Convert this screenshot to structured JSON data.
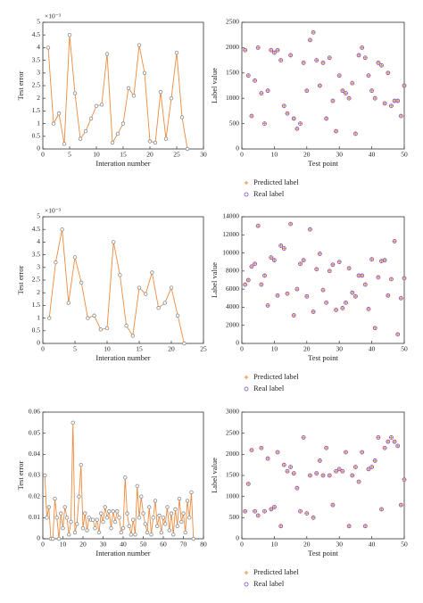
{
  "chart_data": [
    {
      "type": "line",
      "y_multiplier": "×10⁻³",
      "xlabel": "Interation number",
      "ylabel": "Test error",
      "color": "#ee8a3c",
      "marker_color": "#8a8a8a",
      "x": [
        1,
        2,
        3,
        4,
        5,
        6,
        7,
        8,
        9,
        10,
        11,
        12,
        13,
        14,
        15,
        16,
        17,
        18,
        19,
        20,
        21,
        22,
        23,
        24,
        25,
        26,
        27
      ],
      "values": [
        4.0,
        1.0,
        1.4,
        0.2,
        4.5,
        2.2,
        0.4,
        0.7,
        1.2,
        1.7,
        1.75,
        3.75,
        0.25,
        0.6,
        1.0,
        2.4,
        2.1,
        4.1,
        3.0,
        0.3,
        0.25,
        2.25,
        0.4,
        2.0,
        3.8,
        1.25,
        0.0
      ],
      "xlim": [
        0,
        30
      ],
      "xticks": [
        0,
        5,
        10,
        15,
        20,
        25,
        30
      ],
      "ylim": [
        0,
        5
      ],
      "yticks": [
        0,
        0.5,
        1,
        1.5,
        2,
        2.5,
        3,
        3.5,
        4,
        4.5,
        5
      ]
    },
    {
      "type": "scatter",
      "xlabel": "Test point",
      "ylabel": "Label value",
      "x": [
        1,
        2,
        3,
        4,
        5,
        6,
        7,
        8,
        9,
        10,
        11,
        12,
        13,
        14,
        15,
        16,
        17,
        18,
        19,
        20,
        21,
        22,
        23,
        24,
        25,
        26,
        27,
        28,
        29,
        30,
        31,
        32,
        33,
        34,
        35,
        36,
        37,
        38,
        39,
        40,
        41,
        42,
        43,
        44,
        45,
        46,
        47,
        48,
        49,
        50
      ],
      "series": [
        {
          "name": "Predicted label",
          "color": "#ee8a3c",
          "values": [
            1950,
            1450,
            650,
            1350,
            2000,
            1100,
            500,
            1150,
            1950,
            1900,
            1950,
            1750,
            850,
            700,
            1850,
            600,
            400,
            500,
            1700,
            1150,
            2150,
            2300,
            1750,
            1250,
            1700,
            600,
            1800,
            950,
            350,
            1450,
            1150,
            1100,
            1000,
            1300,
            300,
            1850,
            2000,
            1800,
            1450,
            1150,
            1000,
            1700,
            1650,
            900,
            1500,
            850,
            950,
            950,
            650,
            1250
          ]
        },
        {
          "name": "Real label",
          "color": "#7a4fc2",
          "values": [
            1950,
            1450,
            650,
            1350,
            2000,
            1100,
            500,
            1150,
            1950,
            1900,
            1950,
            1750,
            850,
            700,
            1850,
            600,
            400,
            500,
            1700,
            1150,
            2150,
            2300,
            1750,
            1250,
            1700,
            600,
            1800,
            950,
            350,
            1450,
            1150,
            1100,
            1000,
            1300,
            300,
            1850,
            2000,
            1800,
            1450,
            1150,
            1000,
            1700,
            1650,
            900,
            1500,
            850,
            950,
            950,
            650,
            1250
          ]
        }
      ],
      "xlim": [
        0,
        50
      ],
      "xticks": [
        0,
        10,
        20,
        30,
        40,
        50
      ],
      "ylim": [
        0,
        2500
      ],
      "yticks": [
        0,
        500,
        1000,
        1500,
        2000,
        2500
      ]
    },
    {
      "type": "line",
      "y_multiplier": "×10⁻³",
      "xlabel": "Interation number",
      "ylabel": "Test error",
      "color": "#ee8a3c",
      "marker_color": "#8a8a8a",
      "x": [
        1,
        2,
        3,
        4,
        5,
        6,
        7,
        8,
        9,
        10,
        11,
        12,
        13,
        14,
        15,
        16,
        17,
        18,
        19,
        20,
        21,
        22
      ],
      "values": [
        1.0,
        3.2,
        4.5,
        1.6,
        3.4,
        2.4,
        1.0,
        1.1,
        0.55,
        0.6,
        4.0,
        2.7,
        0.7,
        0.3,
        2.2,
        1.95,
        2.8,
        1.4,
        1.6,
        2.2,
        1.1,
        0.0
      ],
      "xlim": [
        0,
        25
      ],
      "xticks": [
        0,
        5,
        10,
        15,
        20,
        25
      ],
      "ylim": [
        0,
        5
      ],
      "yticks": [
        0,
        0.5,
        1,
        1.5,
        2,
        2.5,
        3,
        3.5,
        4,
        4.5,
        5
      ]
    },
    {
      "type": "scatter",
      "xlabel": "Test point",
      "ylabel": "Label value",
      "x": [
        1,
        2,
        3,
        4,
        5,
        6,
        7,
        8,
        9,
        10,
        11,
        12,
        13,
        14,
        15,
        16,
        17,
        18,
        19,
        20,
        21,
        22,
        23,
        24,
        25,
        26,
        27,
        28,
        29,
        30,
        31,
        32,
        33,
        34,
        35,
        36,
        37,
        38,
        39,
        40,
        41,
        42,
        43,
        44,
        45,
        46,
        47,
        48,
        49,
        50
      ],
      "series": [
        {
          "name": "Predicted label",
          "color": "#ee8a3c",
          "values": [
            6500,
            7000,
            8500,
            8800,
            13000,
            6500,
            7500,
            4200,
            9500,
            9200,
            5300,
            10800,
            10500,
            5500,
            13200,
            3100,
            6000,
            8800,
            9200,
            5200,
            12600,
            3500,
            8200,
            9900,
            5900,
            4500,
            8000,
            8700,
            3700,
            9000,
            3900,
            4500,
            8300,
            5600,
            5200,
            7500,
            7500,
            6500,
            3800,
            9300,
            1700,
            7300,
            9100,
            9200,
            5300,
            7100,
            11300,
            1000,
            5000,
            7200
          ]
        },
        {
          "name": "Real label",
          "color": "#7a4fc2",
          "values": [
            6500,
            7000,
            8500,
            8800,
            13000,
            6500,
            7500,
            4200,
            9500,
            9200,
            5300,
            10800,
            10500,
            5500,
            13200,
            3100,
            6000,
            8800,
            9200,
            5200,
            12600,
            3500,
            8200,
            9900,
            5900,
            4500,
            8000,
            8700,
            3700,
            9000,
            3900,
            4500,
            8300,
            5600,
            5200,
            7500,
            7500,
            6500,
            3800,
            9300,
            1700,
            7300,
            9100,
            9200,
            5300,
            7100,
            11300,
            1000,
            5000,
            7200
          ]
        }
      ],
      "xlim": [
        0,
        50
      ],
      "xticks": [
        0,
        10,
        20,
        30,
        40,
        50
      ],
      "ylim": [
        0,
        14000
      ],
      "yticks": [
        0,
        2000,
        4000,
        6000,
        8000,
        10000,
        12000,
        14000
      ]
    },
    {
      "type": "line",
      "xlabel": "Interation number",
      "ylabel": "Test error",
      "color": "#ee8a3c",
      "marker_color": "#8a8a8a",
      "x": [
        1,
        2,
        3,
        4,
        5,
        6,
        7,
        8,
        9,
        10,
        11,
        12,
        13,
        14,
        15,
        16,
        17,
        18,
        19,
        20,
        21,
        22,
        23,
        24,
        25,
        26,
        27,
        28,
        29,
        30,
        31,
        32,
        33,
        34,
        35,
        36,
        37,
        38,
        39,
        40,
        41,
        42,
        43,
        44,
        45,
        46,
        47,
        48,
        49,
        50,
        51,
        52,
        53,
        54,
        55,
        56,
        57,
        58,
        59,
        60,
        61,
        62,
        63,
        64,
        65,
        66,
        67,
        68,
        69,
        70,
        71,
        72,
        73,
        74,
        75
      ],
      "values": [
        0.03,
        0.01,
        0.015,
        0.0,
        0.0,
        0.019,
        0.01,
        0.0,
        0.012,
        0.005,
        0.015,
        0.01,
        0.002,
        0.008,
        0.055,
        0.003,
        0.007,
        0.02,
        0.035,
        0.005,
        0.012,
        0.004,
        0.01,
        0.009,
        0.009,
        0.005,
        0.009,
        0.003,
        0.012,
        0.008,
        0.015,
        0.01,
        0.013,
        0.005,
        0.013,
        0.008,
        0.013,
        0.01,
        0.003,
        0.005,
        0.029,
        0.012,
        0.006,
        0.002,
        0.009,
        0.002,
        0.025,
        0.01,
        0.02,
        0.012,
        0.007,
        0.003,
        0.015,
        0.002,
        0.01,
        0.018,
        0.006,
        0.011,
        0.003,
        0.01,
        0.007,
        0.015,
        0.004,
        0.012,
        0.002,
        0.014,
        0.006,
        0.019,
        0.008,
        0.012,
        0.003,
        0.018,
        0.01,
        0.022,
        0.0
      ],
      "xlim": [
        0,
        80
      ],
      "xticks": [
        0,
        10,
        20,
        30,
        40,
        50,
        60,
        70,
        80
      ],
      "ylim": [
        0,
        0.06
      ],
      "yticks": [
        0,
        0.01,
        0.02,
        0.03,
        0.04,
        0.05,
        0.06
      ]
    },
    {
      "type": "scatter",
      "xlabel": "Test point",
      "ylabel": "Label value",
      "x": [
        1,
        2,
        3,
        4,
        5,
        6,
        7,
        8,
        9,
        10,
        11,
        12,
        13,
        14,
        15,
        16,
        17,
        18,
        19,
        20,
        21,
        22,
        23,
        24,
        25,
        26,
        27,
        28,
        29,
        30,
        31,
        32,
        33,
        34,
        35,
        36,
        37,
        38,
        39,
        40,
        41,
        42,
        43,
        44,
        45,
        46,
        47,
        48,
        49,
        50
      ],
      "series": [
        {
          "name": "Predicted label",
          "color": "#ee8a3c",
          "values": [
            650,
            1300,
            2100,
            650,
            550,
            2150,
            650,
            1900,
            700,
            750,
            2050,
            300,
            1750,
            1600,
            1700,
            1550,
            1200,
            650,
            2400,
            600,
            1500,
            500,
            1550,
            1850,
            1500,
            2150,
            1500,
            800,
            1600,
            1650,
            1600,
            2050,
            300,
            1500,
            1700,
            1350,
            2050,
            300,
            1650,
            1700,
            1850,
            2400,
            700,
            2150,
            2300,
            2400,
            2300,
            2200,
            800,
            1400
          ]
        },
        {
          "name": "Real label",
          "color": "#7a4fc2",
          "values": [
            650,
            1300,
            2100,
            650,
            550,
            2150,
            650,
            1900,
            700,
            750,
            2050,
            300,
            1750,
            1600,
            1700,
            1550,
            1200,
            650,
            2400,
            600,
            1500,
            500,
            1550,
            1850,
            1500,
            2150,
            1500,
            800,
            1600,
            1650,
            1600,
            2050,
            300,
            1500,
            1700,
            1350,
            2050,
            300,
            1650,
            1700,
            1850,
            2400,
            700,
            2150,
            2300,
            2400,
            2300,
            2200,
            800,
            1400
          ]
        }
      ],
      "xlim": [
        0,
        50
      ],
      "xticks": [
        0,
        10,
        20,
        30,
        40,
        50
      ],
      "ylim": [
        0,
        3000
      ],
      "yticks": [
        0,
        500,
        1000,
        1500,
        2000,
        2500,
        3000
      ]
    }
  ]
}
